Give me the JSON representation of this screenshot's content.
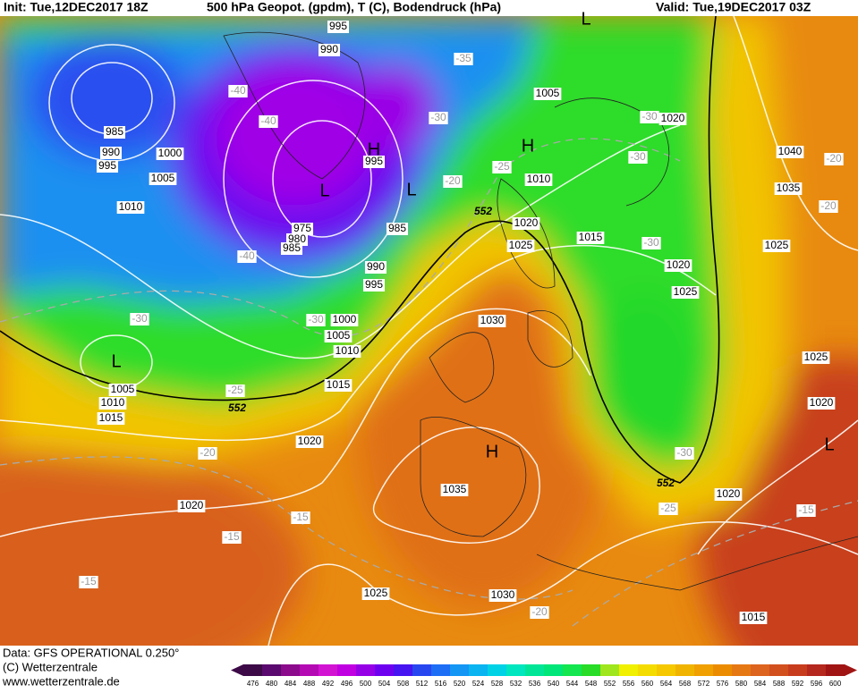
{
  "header": {
    "init": "Init: Tue,12DEC2017 18Z",
    "title": "500 hPa Geopot. (gpdm), T (C), Bodendruck (hPa)",
    "valid": "Valid: Tue,19DEC2017 03Z"
  },
  "footer": {
    "data": "Data: GFS OPERATIONAL 0.250°",
    "copyright": "(C) Wetterzentrale",
    "url": "www.wetterzentrale.de"
  },
  "colorbar": {
    "ticks": [
      476,
      480,
      484,
      488,
      492,
      496,
      500,
      504,
      508,
      512,
      516,
      520,
      524,
      528,
      532,
      536,
      540,
      544,
      548,
      552,
      556,
      560,
      564,
      568,
      572,
      576,
      580,
      584,
      588,
      592,
      596,
      600
    ],
    "colors": [
      "#3c0a46",
      "#5a0a6e",
      "#8c0a8c",
      "#b40ab4",
      "#d214d2",
      "#c000e0",
      "#9600e6",
      "#6e00f0",
      "#4614f0",
      "#2846f0",
      "#1e6ef5",
      "#1496f5",
      "#0ab4f0",
      "#00d2e6",
      "#00e6be",
      "#00e696",
      "#00e678",
      "#14e650",
      "#28dc28",
      "#a0e61e",
      "#f0f000",
      "#f5dc00",
      "#f5c800",
      "#f0b400",
      "#f0a000",
      "#eb8c00",
      "#e67814",
      "#dc641e",
      "#d2501e",
      "#c83c1e",
      "#b4281e",
      "#a01414"
    ]
  },
  "map": {
    "isobar_labels": [
      995,
      990,
      1005,
      1020,
      985,
      990,
      995,
      1000,
      1005,
      995,
      1010,
      1010,
      1020,
      1025,
      975,
      980,
      985,
      985,
      1015,
      1040,
      1035,
      990,
      995,
      1020,
      1025,
      1025,
      1000,
      1005,
      1010,
      1030,
      1015,
      1005,
      1010,
      1015,
      1020,
      1025,
      1020,
      1020,
      1035,
      1020,
      1025,
      1030,
      1015
    ],
    "temperature_labels": [
      -35,
      -40,
      -40,
      -30,
      -30,
      -30,
      -25,
      -20,
      -20,
      -20,
      -30,
      -40,
      -30,
      -30,
      -25,
      -20,
      -30,
      -15,
      -25,
      -15,
      -15,
      -15,
      -20
    ],
    "contour_552_labels": [
      552,
      552,
      552
    ],
    "centers": [
      "L",
      "H",
      "H",
      "L",
      "L",
      "L",
      "H",
      "L"
    ]
  }
}
